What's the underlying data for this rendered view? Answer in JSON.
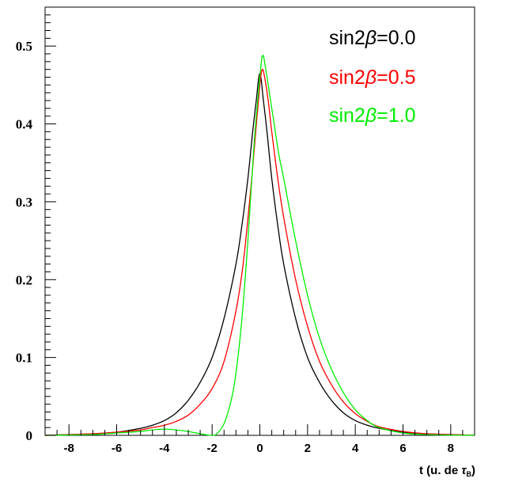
{
  "chart_data": {
    "type": "line",
    "title": "",
    "xlabel": "t (u. de τB)",
    "xlabel_main": "t (u. de ",
    "xlabel_tau": "τ",
    "xlabel_sub": "B",
    "xlabel_close": ")",
    "ylabel": "",
    "xlim": [
      -9,
      9
    ],
    "ylim": [
      0,
      0.55
    ],
    "grid": false,
    "legend_position": "top-right",
    "x_ticks": [
      -8,
      -6,
      -4,
      -2,
      0,
      2,
      4,
      6,
      8
    ],
    "x_tick_labels": [
      "-8",
      "-6",
      "-4",
      "-2",
      "0",
      "2",
      "4",
      "6",
      "8"
    ],
    "y_ticks": [
      0,
      0.1,
      0.2,
      0.3,
      0.4,
      0.5
    ],
    "y_tick_labels": [
      "0",
      "0.1",
      "0.2",
      "0.3",
      "0.4",
      "0.5"
    ],
    "series": [
      {
        "name": "sin2β=0.0",
        "color": "#000000",
        "x": [
          -9,
          -8,
          -7,
          -6,
          -5,
          -4.5,
          -4,
          -3.5,
          -3,
          -2.5,
          -2,
          -1.5,
          -1,
          -0.75,
          -0.5,
          -0.3,
          -0.15,
          0,
          0.15,
          0.3,
          0.5,
          0.75,
          1,
          1.5,
          2,
          2.5,
          3,
          3.5,
          4,
          4.5,
          5,
          6,
          7,
          8,
          9
        ],
        "y": [
          0.0,
          0.001,
          0.002,
          0.004,
          0.009,
          0.013,
          0.019,
          0.029,
          0.045,
          0.068,
          0.1,
          0.15,
          0.22,
          0.27,
          0.33,
          0.39,
          0.43,
          0.465,
          0.43,
          0.39,
          0.33,
          0.27,
          0.22,
          0.15,
          0.1,
          0.068,
          0.045,
          0.029,
          0.019,
          0.013,
          0.009,
          0.004,
          0.002,
          0.001,
          0.0
        ]
      },
      {
        "name": "sin2β=0.5",
        "color": "#ff0000",
        "x": [
          -9,
          -8,
          -7,
          -6,
          -5,
          -4.5,
          -4,
          -3.5,
          -3,
          -2.5,
          -2,
          -1.5,
          -1,
          -0.7,
          -0.4,
          -0.2,
          0,
          0.1,
          0.2,
          0.35,
          0.5,
          0.75,
          1,
          1.5,
          2,
          2.5,
          3,
          3.5,
          4,
          4.5,
          5,
          6,
          7,
          8,
          9
        ],
        "y": [
          0.0,
          0.001,
          0.002,
          0.004,
          0.007,
          0.01,
          0.013,
          0.018,
          0.026,
          0.04,
          0.06,
          0.095,
          0.16,
          0.22,
          0.31,
          0.38,
          0.45,
          0.47,
          0.46,
          0.43,
          0.39,
          0.33,
          0.28,
          0.2,
          0.14,
          0.095,
          0.065,
          0.043,
          0.028,
          0.018,
          0.011,
          0.005,
          0.002,
          0.001,
          0.0
        ]
      },
      {
        "name": "sin2β=1.0",
        "color": "#00ee00",
        "x": [
          -9,
          -8,
          -7,
          -6,
          -5,
          -4.5,
          -4,
          -3.5,
          -3,
          -2.5,
          -2.2,
          -2,
          -1.8,
          -1.5,
          -1.2,
          -1,
          -0.75,
          -0.5,
          -0.25,
          0,
          0.12,
          0.25,
          0.4,
          0.6,
          0.8,
          1,
          1.5,
          2,
          2.5,
          3,
          3.5,
          4,
          4.5,
          5,
          6,
          7,
          8,
          9
        ],
        "y": [
          0.0,
          0.0005,
          0.001,
          0.003,
          0.005,
          0.007,
          0.008,
          0.007,
          0.005,
          0.002,
          0.0005,
          0.0,
          0.002,
          0.015,
          0.045,
          0.08,
          0.15,
          0.25,
          0.37,
          0.46,
          0.488,
          0.47,
          0.44,
          0.4,
          0.36,
          0.33,
          0.25,
          0.18,
          0.125,
          0.085,
          0.055,
          0.033,
          0.019,
          0.01,
          0.003,
          0.001,
          0.0003,
          0.0
        ]
      }
    ]
  }
}
